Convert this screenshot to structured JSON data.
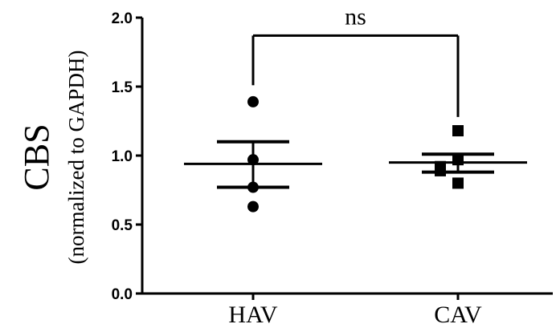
{
  "chart_data": {
    "type": "scatter",
    "ylabel": "CBS",
    "ylabel_sub": "(normalized to GAPDH)",
    "ylim": [
      0,
      2.0
    ],
    "yticks": [
      "0.0",
      "0.5",
      "1.0",
      "1.5",
      "2.0"
    ],
    "categories": [
      "HAV",
      "CAV"
    ],
    "series": [
      {
        "category": "HAV",
        "marker": "circle",
        "points": [
          1.39,
          0.97,
          0.77,
          0.63
        ],
        "mean": 0.94,
        "sem_upper": 1.1,
        "sem_lower": 0.77
      },
      {
        "category": "CAV",
        "marker": "square",
        "points": [
          1.18,
          0.97,
          0.92,
          0.89,
          0.8
        ],
        "mean": 0.95,
        "sem_upper": 1.01,
        "sem_lower": 0.88
      }
    ],
    "significance": {
      "label": "ns",
      "y": 1.87,
      "from": "HAV",
      "to": "CAV"
    },
    "grid": false,
    "legend": "none"
  }
}
